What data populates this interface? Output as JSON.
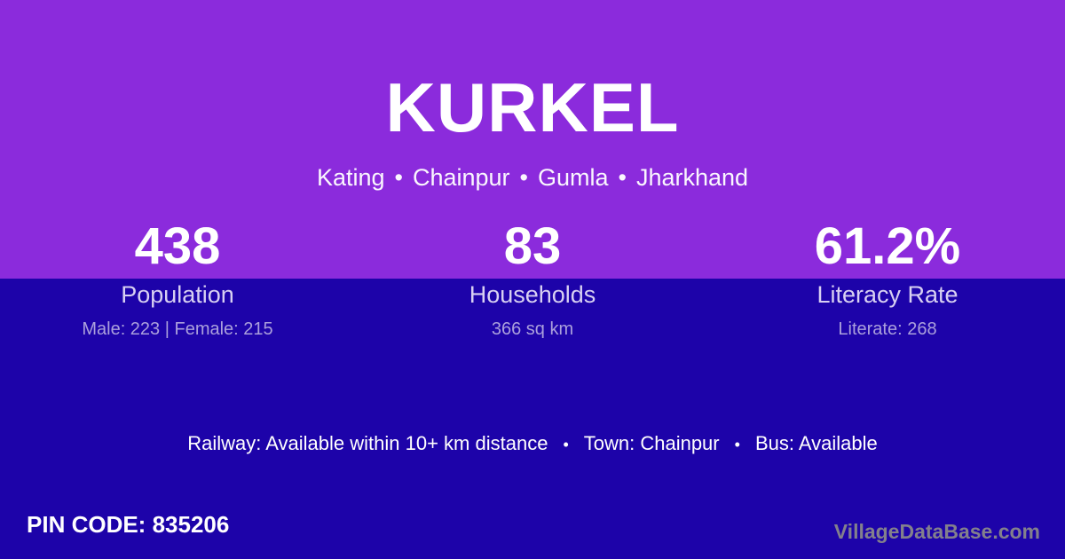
{
  "theme": {
    "top_background": "#8B2BDC",
    "bottom_background": "#1D03A9",
    "primary_text": "#FFFFFF",
    "label_text": "#D8D0F2",
    "detail_text": "#ABA0DC",
    "watermark_text": "#83808C"
  },
  "header": {
    "title": "KURKEL",
    "separator": "•",
    "subtitle_parts": [
      "Kating",
      "Chainpur",
      "Gumla",
      "Jharkhand"
    ]
  },
  "stats": [
    {
      "value": "438",
      "label": "Population",
      "detail": "Male: 223 | Female: 215"
    },
    {
      "value": "83",
      "label": "Households",
      "detail": "366 sq km"
    },
    {
      "value": "61.2%",
      "label": "Literacy Rate",
      "detail": "Literate: 268"
    }
  ],
  "info_line": {
    "separator": "•",
    "segments": [
      "Railway: Available within 10+ km distance",
      "Town: Chainpur",
      "Bus: Available"
    ]
  },
  "footer": {
    "pin_code": "PIN CODE: 835206",
    "watermark": "VillageDataBase.com"
  }
}
